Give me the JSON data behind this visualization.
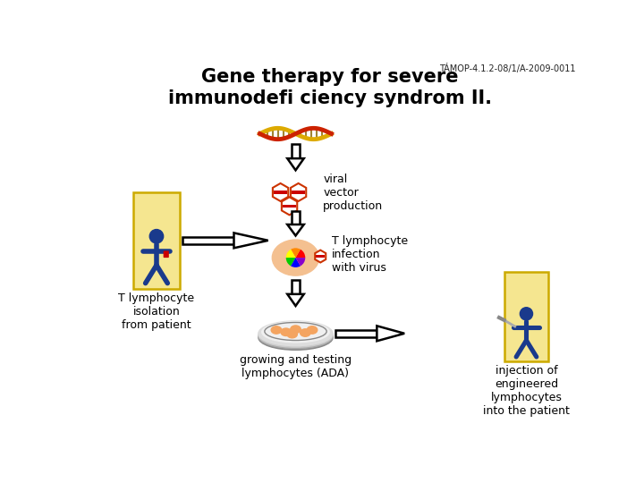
{
  "title": "Gene therapy for severe\nimmunodefi ciency syndrom II.",
  "watermark": "TÁMOP-4.1.2-08/1/A-2009-0011",
  "label_viral": "viral\nvector\nproduction",
  "label_tcell_infection": "T lymphocyte\ninfection\nwith virus",
  "label_isolation": "T lymphocyte\nisolation\nfrom patient",
  "label_growing": "growing and testing\nlymphocytes (ADA)",
  "label_injection": "injection of\nengineered\nlymphocytes\ninto the patient",
  "bg_color": "#ffffff",
  "figure_color": "#1a3a8c",
  "text_color": "#000000",
  "box_color": "#f5e690",
  "box_edge": "#ccaa00"
}
